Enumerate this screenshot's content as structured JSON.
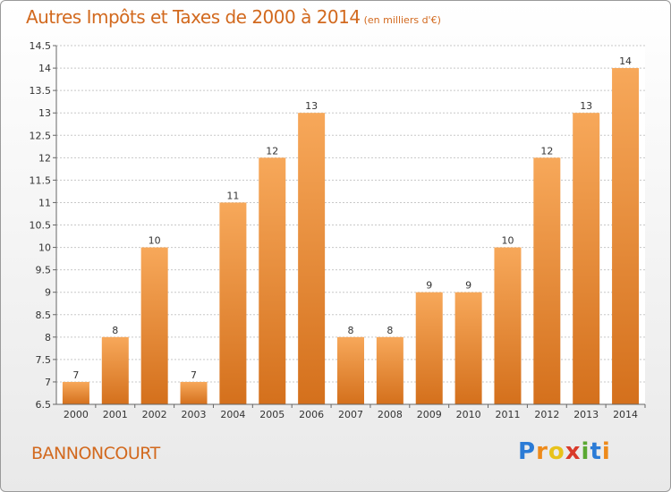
{
  "header": {
    "title": "Autres Impôts et Taxes de 2000 à 2014",
    "unit": "(en milliers d'€)"
  },
  "footer": {
    "commune": "BANNONCOURT",
    "logo_letters": [
      "P",
      "r",
      "o",
      "x",
      "i",
      "t",
      "i"
    ],
    "logo_colors": [
      "#2b7bd6",
      "#ee8a1a",
      "#e8c21a",
      "#d93a2a",
      "#5aa832",
      "#2b7bd6",
      "#ee8a1a"
    ]
  },
  "colors": {
    "bar_light": "#f7a85a",
    "bar_dark": "#d4701c",
    "title": "#d2691e",
    "grid": "#c8c8c8"
  },
  "chart_data": {
    "type": "bar",
    "title": "Autres Impôts et Taxes de 2000 à 2014",
    "subtitle": "(en milliers d'€)",
    "xlabel": "",
    "ylabel": "",
    "categories": [
      "2000",
      "2001",
      "2002",
      "2003",
      "2004",
      "2005",
      "2006",
      "2007",
      "2008",
      "2009",
      "2010",
      "2011",
      "2012",
      "2013",
      "2014"
    ],
    "values": [
      7,
      8,
      10,
      7,
      11,
      12,
      13,
      8,
      8,
      9,
      9,
      10,
      12,
      13,
      14
    ],
    "value_labels": [
      "7",
      "8",
      "10",
      "7",
      "11",
      "12",
      "13",
      "8",
      "8",
      "9",
      "9",
      "10",
      "12",
      "13",
      "14"
    ],
    "ylim": [
      6.5,
      14.5
    ],
    "yticks": [
      6.5,
      7,
      7.5,
      8,
      8.5,
      9,
      9.5,
      10,
      10.5,
      11,
      11.5,
      12,
      12.5,
      13,
      13.5,
      14,
      14.5
    ],
    "ytick_labels": [
      "6.5",
      "7",
      "7.5",
      "8",
      "8.5",
      "9",
      "9.5",
      "10",
      "10.5",
      "11",
      "11.5",
      "12",
      "12.5",
      "13",
      "13.5",
      "14",
      "14.5"
    ],
    "grid": true,
    "legend": "none"
  }
}
